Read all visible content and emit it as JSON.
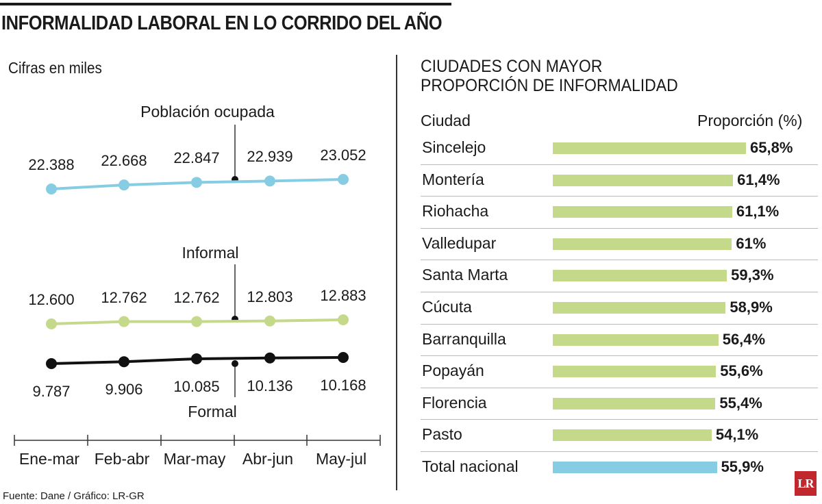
{
  "title": "INFORMALIDAD LABORAL EN LO CORRIDO DEL AÑO",
  "subtitle": "Cifras en miles",
  "source": "Fuente: Dane / Gráfico: LR-GR",
  "logo_text": "LR",
  "chart_data": [
    {
      "type": "line",
      "title": "INFORMALIDAD LABORAL EN LO CORRIDO DEL AÑO",
      "subtitle": "Cifras en miles",
      "categories": [
        "Ene-mar",
        "Feb-abr",
        "Mar-may",
        "Abr-jun",
        "May-jul"
      ],
      "series": [
        {
          "name": "Población ocupada",
          "color": "#86cde3",
          "values": [
            22388,
            22668,
            22847,
            22939,
            23052
          ],
          "labels": [
            "22.388",
            "22.668",
            "22.847",
            "22.939",
            "23.052"
          ]
        },
        {
          "name": "Informal",
          "color": "#c5d98b",
          "values": [
            12600,
            12762,
            12762,
            12803,
            12883
          ],
          "labels": [
            "12.600",
            "12.762",
            "12.762",
            "12.803",
            "12.883"
          ]
        },
        {
          "name": "Formal",
          "color": "#111111",
          "values": [
            9787,
            9906,
            10085,
            10136,
            10168
          ],
          "labels": [
            "9.787",
            "9.906",
            "10.085",
            "10.136",
            "10.168"
          ]
        }
      ]
    },
    {
      "type": "bar",
      "orientation": "horizontal",
      "title": "CIUDADES CON MAYOR PROPORCIÓN DE INFORMALIDAD",
      "title_lines": [
        "CIUDADES CON MAYOR",
        "PROPORCIÓN DE INFORMALIDAD"
      ],
      "column_headers": {
        "city": "Ciudad",
        "proportion": "Proporción (%)"
      },
      "categories": [
        "Sincelejo",
        "Montería",
        "Riohacha",
        "Valledupar",
        "Santa Marta",
        "Cúcuta",
        "Barranquilla",
        "Popayán",
        "Florencia",
        "Pasto",
        "Total nacional"
      ],
      "values": [
        65.8,
        61.4,
        61.1,
        61,
        59.3,
        58.9,
        56.4,
        55.6,
        55.4,
        54.1,
        55.9
      ],
      "labels": [
        "65,8%",
        "61,4%",
        "61,1%",
        "61%",
        "59,3%",
        "58,9%",
        "56,4%",
        "55,6%",
        "55,4%",
        "54,1%",
        "55,9%"
      ],
      "bar_color": "#c5d98b",
      "total_color": "#86cde3"
    }
  ]
}
